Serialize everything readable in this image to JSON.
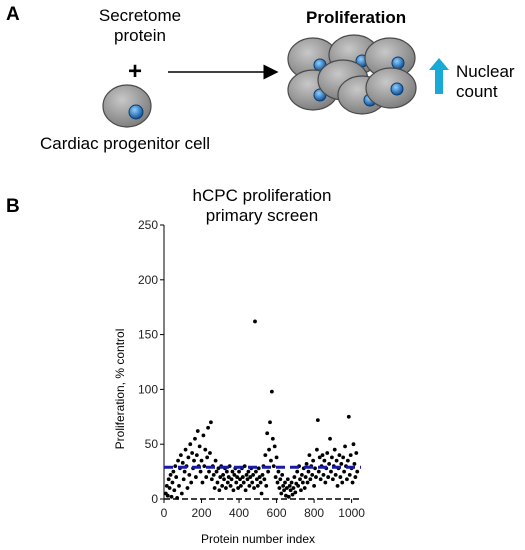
{
  "panel_a": {
    "letter": "A",
    "secretome_line1": "Secretome",
    "secretome_line2": "protein",
    "plus": "+",
    "cell_label": "Cardiac progenitor cell",
    "result_title": "Proliferation",
    "nuclear_line1": "Nuclear",
    "nuclear_line2": "count",
    "colors": {
      "cell": "#8c8c8c",
      "nucleus": "#1f6fb5",
      "arrow_up": "#19a9d6"
    }
  },
  "panel_b": {
    "letter": "B"
  },
  "chart_data": {
    "type": "scatter",
    "title_line1": "hCPC proliferation",
    "title_line2": "primary screen",
    "xlabel": "Protein number index",
    "ylabel": "Proliferation, % control",
    "xlim": [
      0,
      1050
    ],
    "ylim": [
      0,
      250
    ],
    "xticks": [
      0,
      200,
      400,
      600,
      800,
      1000
    ],
    "yticks": [
      0,
      50,
      100,
      150,
      200,
      250
    ],
    "threshold": {
      "y": 29,
      "color": "#1a1aa6",
      "style": "dashed"
    },
    "zero_line": {
      "y": 0,
      "style": "dashed",
      "color": "#000000"
    },
    "grid": false,
    "series": [
      {
        "points": [
          [
            10,
            5
          ],
          [
            15,
            12
          ],
          [
            20,
            3
          ],
          [
            25,
            18
          ],
          [
            30,
            10
          ],
          [
            35,
            22
          ],
          [
            40,
            2
          ],
          [
            45,
            15
          ],
          [
            50,
            25
          ],
          [
            55,
            8
          ],
          [
            60,
            30
          ],
          [
            65,
            20
          ],
          [
            70,
            1
          ],
          [
            75,
            35
          ],
          [
            80,
            12
          ],
          [
            85,
            28
          ],
          [
            90,
            40
          ],
          [
            95,
            5
          ],
          [
            100,
            33
          ],
          [
            105,
            18
          ],
          [
            110,
            25
          ],
          [
            115,
            45
          ],
          [
            120,
            30
          ],
          [
            125,
            10
          ],
          [
            130,
            38
          ],
          [
            135,
            22
          ],
          [
            140,
            50
          ],
          [
            145,
            15
          ],
          [
            150,
            42
          ],
          [
            155,
            28
          ],
          [
            160,
            35
          ],
          [
            165,
            55
          ],
          [
            170,
            20
          ],
          [
            175,
            40
          ],
          [
            180,
            62
          ],
          [
            185,
            30
          ],
          [
            190,
            48
          ],
          [
            195,
            25
          ],
          [
            200,
            35
          ],
          [
            205,
            15
          ],
          [
            210,
            58
          ],
          [
            215,
            30
          ],
          [
            220,
            45
          ],
          [
            225,
            20
          ],
          [
            230,
            38
          ],
          [
            235,
            65
          ],
          [
            240,
            25
          ],
          [
            245,
            42
          ],
          [
            250,
            70
          ],
          [
            255,
            18
          ],
          [
            260,
            30
          ],
          [
            265,
            22
          ],
          [
            270,
            10
          ],
          [
            275,
            35
          ],
          [
            280,
            25
          ],
          [
            285,
            15
          ],
          [
            290,
            28
          ],
          [
            295,
            8
          ],
          [
            300,
            20
          ],
          [
            305,
            30
          ],
          [
            310,
            12
          ],
          [
            315,
            22
          ],
          [
            320,
            18
          ],
          [
            325,
            28
          ],
          [
            330,
            10
          ],
          [
            335,
            25
          ],
          [
            340,
            15
          ],
          [
            345,
            20
          ],
          [
            350,
            30
          ],
          [
            355,
            12
          ],
          [
            360,
            18
          ],
          [
            365,
            25
          ],
          [
            370,
            8
          ],
          [
            375,
            22
          ],
          [
            380,
            28
          ],
          [
            385,
            15
          ],
          [
            390,
            20
          ],
          [
            395,
            10
          ],
          [
            400,
            25
          ],
          [
            405,
            18
          ],
          [
            410,
            12
          ],
          [
            415,
            28
          ],
          [
            420,
            20
          ],
          [
            425,
            15
          ],
          [
            430,
            30
          ],
          [
            435,
            8
          ],
          [
            440,
            22
          ],
          [
            445,
            18
          ],
          [
            450,
            25
          ],
          [
            455,
            12
          ],
          [
            460,
            20
          ],
          [
            465,
            28
          ],
          [
            470,
            15
          ],
          [
            475,
            22
          ],
          [
            480,
            10
          ],
          [
            485,
            162
          ],
          [
            490,
            25
          ],
          [
            495,
            18
          ],
          [
            500,
            12
          ],
          [
            505,
            28
          ],
          [
            510,
            20
          ],
          [
            515,
            15
          ],
          [
            520,
            5
          ],
          [
            525,
            22
          ],
          [
            530,
            30
          ],
          [
            535,
            18
          ],
          [
            540,
            40
          ],
          [
            545,
            12
          ],
          [
            550,
            60
          ],
          [
            555,
            25
          ],
          [
            560,
            45
          ],
          [
            565,
            70
          ],
          [
            570,
            35
          ],
          [
            575,
            98
          ],
          [
            580,
            55
          ],
          [
            585,
            30
          ],
          [
            590,
            48
          ],
          [
            595,
            20
          ],
          [
            600,
            38
          ],
          [
            605,
            15
          ],
          [
            610,
            25
          ],
          [
            615,
            10
          ],
          [
            620,
            18
          ],
          [
            625,
            5
          ],
          [
            630,
            22
          ],
          [
            635,
            12
          ],
          [
            640,
            8
          ],
          [
            645,
            15
          ],
          [
            650,
            3
          ],
          [
            655,
            10
          ],
          [
            660,
            18
          ],
          [
            665,
            2
          ],
          [
            670,
            12
          ],
          [
            675,
            8
          ],
          [
            680,
            15
          ],
          [
            685,
            4
          ],
          [
            690,
            10
          ],
          [
            695,
            20
          ],
          [
            700,
            6
          ],
          [
            705,
            14
          ],
          [
            710,
            25
          ],
          [
            715,
            12
          ],
          [
            720,
            30
          ],
          [
            725,
            18
          ],
          [
            730,
            8
          ],
          [
            735,
            22
          ],
          [
            740,
            15
          ],
          [
            745,
            28
          ],
          [
            750,
            10
          ],
          [
            755,
            20
          ],
          [
            760,
            32
          ],
          [
            765,
            15
          ],
          [
            770,
            25
          ],
          [
            775,
            40
          ],
          [
            780,
            18
          ],
          [
            785,
            30
          ],
          [
            790,
            22
          ],
          [
            795,
            35
          ],
          [
            800,
            12
          ],
          [
            805,
            28
          ],
          [
            810,
            20
          ],
          [
            815,
            45
          ],
          [
            820,
            72
          ],
          [
            825,
            25
          ],
          [
            830,
            38
          ],
          [
            835,
            18
          ],
          [
            840,
            30
          ],
          [
            845,
            40
          ],
          [
            850,
            22
          ],
          [
            855,
            35
          ],
          [
            860,
            15
          ],
          [
            865,
            28
          ],
          [
            870,
            42
          ],
          [
            875,
            20
          ],
          [
            880,
            32
          ],
          [
            885,
            55
          ],
          [
            890,
            25
          ],
          [
            895,
            38
          ],
          [
            900,
            18
          ],
          [
            905,
            30
          ],
          [
            910,
            45
          ],
          [
            915,
            22
          ],
          [
            920,
            35
          ],
          [
            925,
            12
          ],
          [
            930,
            28
          ],
          [
            935,
            40
          ],
          [
            940,
            20
          ],
          [
            945,
            32
          ],
          [
            950,
            15
          ],
          [
            955,
            38
          ],
          [
            960,
            25
          ],
          [
            965,
            48
          ],
          [
            970,
            30
          ],
          [
            975,
            18
          ],
          [
            980,
            35
          ],
          [
            985,
            75
          ],
          [
            990,
            22
          ],
          [
            995,
            40
          ],
          [
            1000,
            28
          ],
          [
            1005,
            15
          ],
          [
            1010,
            50
          ],
          [
            1015,
            32
          ],
          [
            1020,
            20
          ],
          [
            1025,
            42
          ],
          [
            1030,
            25
          ]
        ]
      }
    ]
  }
}
